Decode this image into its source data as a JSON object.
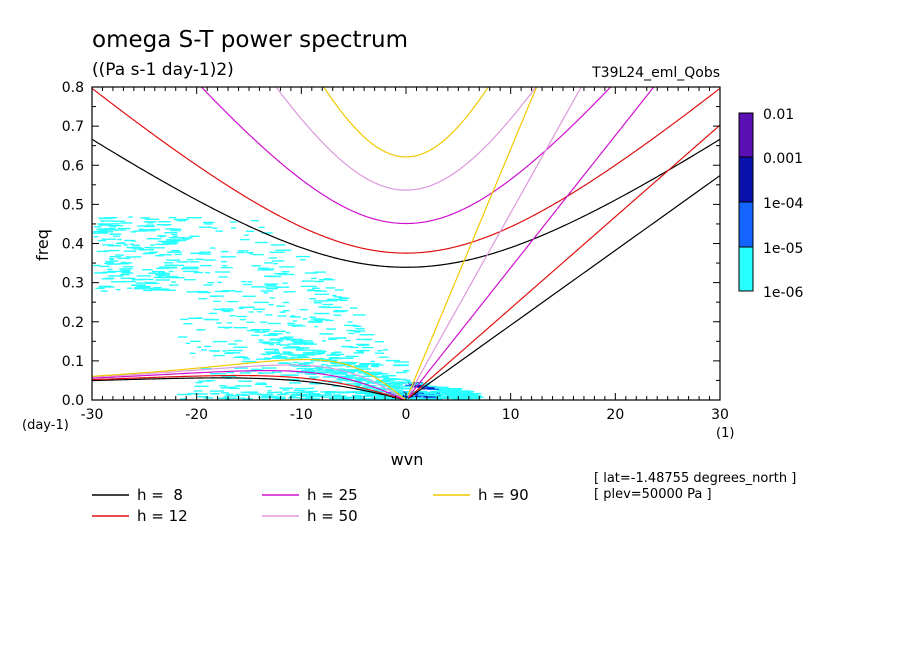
{
  "chart_data": {
    "type": "line",
    "title": "omega S-T power spectrum",
    "subtitle": "((Pa s-1 day-1)2)",
    "experiment": "T39L24_eml_Qobs",
    "xlabel": "wvn",
    "ylabel": "freq",
    "x_unit": "(1)",
    "y_unit": "(day-1)",
    "xlim": [
      -30,
      30
    ],
    "ylim": [
      0,
      0.8
    ],
    "x_ticks": [
      -30,
      -20,
      -10,
      0,
      10,
      20,
      30
    ],
    "x_tick_labels": [
      "-30",
      "-20",
      "-10",
      "0",
      "10",
      "20",
      "30"
    ],
    "y_ticks": [
      0.0,
      0.1,
      0.2,
      0.3,
      0.4,
      0.5,
      0.6,
      0.7,
      0.8
    ],
    "y_tick_labels": [
      "0.0",
      "0.1",
      "0.2",
      "0.3",
      "0.4",
      "0.5",
      "0.6",
      "0.7",
      "0.8"
    ],
    "colorbar": {
      "labels": [
        "0.01",
        "0.001",
        "1e-04",
        "1e-05",
        "1e-06"
      ],
      "colors": [
        "#5a10b4",
        "#0a10aa",
        "#1464ff",
        "#28ffff"
      ]
    },
    "info_lines": [
      "[ lat=-1.48755 degrees_north ]",
      "[ plev=50000 Pa ]"
    ],
    "series": [
      {
        "name": "h =  8",
        "h": 8,
        "color": "#000000"
      },
      {
        "name": "h = 12",
        "h": 12,
        "color": "#e01010"
      },
      {
        "name": "h = 25",
        "h": 25,
        "color": "#d010d0"
      },
      {
        "name": "h = 50",
        "h": 50,
        "color": "#dd99dd"
      },
      {
        "name": "h = 90",
        "h": 90,
        "color": "#f0c800"
      }
    ]
  }
}
